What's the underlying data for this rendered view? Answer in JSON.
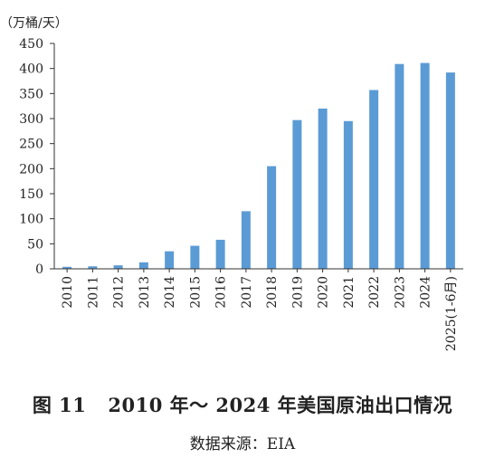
{
  "chart_data": {
    "type": "bar",
    "unit_label": "（万桶/天）",
    "categories": [
      "2010",
      "2011",
      "2012",
      "2013",
      "2014",
      "2015",
      "2016",
      "2017",
      "2018",
      "2019",
      "2020",
      "2021",
      "2022",
      "2023",
      "2024",
      "2025(1-6月)"
    ],
    "values": [
      4,
      5,
      7,
      13,
      35,
      46,
      58,
      115,
      205,
      297,
      320,
      295,
      357,
      409,
      411,
      392
    ],
    "yticks": [
      0,
      50,
      100,
      150,
      200,
      250,
      300,
      350,
      400,
      450
    ],
    "ylim": [
      0,
      450
    ],
    "bar_color": "#5b9bd5",
    "grid": false,
    "legend": "none"
  },
  "caption": {
    "figure_number": "图 11",
    "title": "2010 年～ 2024 年美国原油出口情况"
  },
  "source": "数据来源：EIA"
}
